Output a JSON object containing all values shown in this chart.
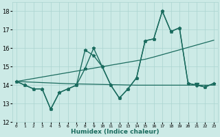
{
  "xlabel": "Humidex (Indice chaleur)",
  "x": [
    0,
    1,
    2,
    3,
    4,
    5,
    6,
    7,
    8,
    9,
    10,
    11,
    12,
    13,
    14,
    15,
    16,
    17,
    18,
    19,
    20,
    21,
    22,
    23
  ],
  "y_main": [
    14.2,
    14.0,
    13.8,
    13.8,
    12.7,
    13.6,
    13.8,
    14.0,
    14.9,
    16.0,
    15.0,
    14.0,
    13.3,
    13.8,
    14.4,
    16.4,
    16.5,
    18.0,
    16.9,
    17.1,
    14.1,
    14.0,
    13.9,
    14.1
  ],
  "y_alt": [
    14.2,
    14.0,
    13.8,
    13.8,
    12.7,
    13.6,
    13.8,
    14.0,
    15.9,
    15.6,
    15.0,
    14.0,
    13.3,
    13.8,
    14.4,
    16.4,
    16.5,
    18.0,
    16.9,
    17.1,
    14.1,
    14.0,
    13.9,
    14.1
  ],
  "y_trend_rise": [
    14.2,
    14.28,
    14.36,
    14.44,
    14.52,
    14.6,
    14.68,
    14.76,
    14.84,
    14.92,
    15.0,
    15.08,
    15.16,
    15.24,
    15.32,
    15.4,
    15.52,
    15.65,
    15.78,
    15.91,
    16.04,
    16.17,
    16.3,
    16.43
  ],
  "y_trend_flat": [
    14.2,
    14.18,
    14.16,
    14.14,
    14.12,
    14.1,
    14.08,
    14.07,
    14.06,
    14.05,
    14.04,
    14.03,
    14.02,
    14.01,
    14.0,
    14.0,
    14.0,
    14.0,
    14.0,
    14.0,
    14.0,
    14.0,
    14.0,
    14.0
  ],
  "color": "#1a6b5e",
  "bg_color": "#cceae6",
  "grid_color": "#aad4d0",
  "ylim": [
    12,
    18.5
  ],
  "yticks": [
    12,
    13,
    14,
    15,
    16,
    17,
    18
  ],
  "xlim": [
    -0.5,
    23.5
  ]
}
